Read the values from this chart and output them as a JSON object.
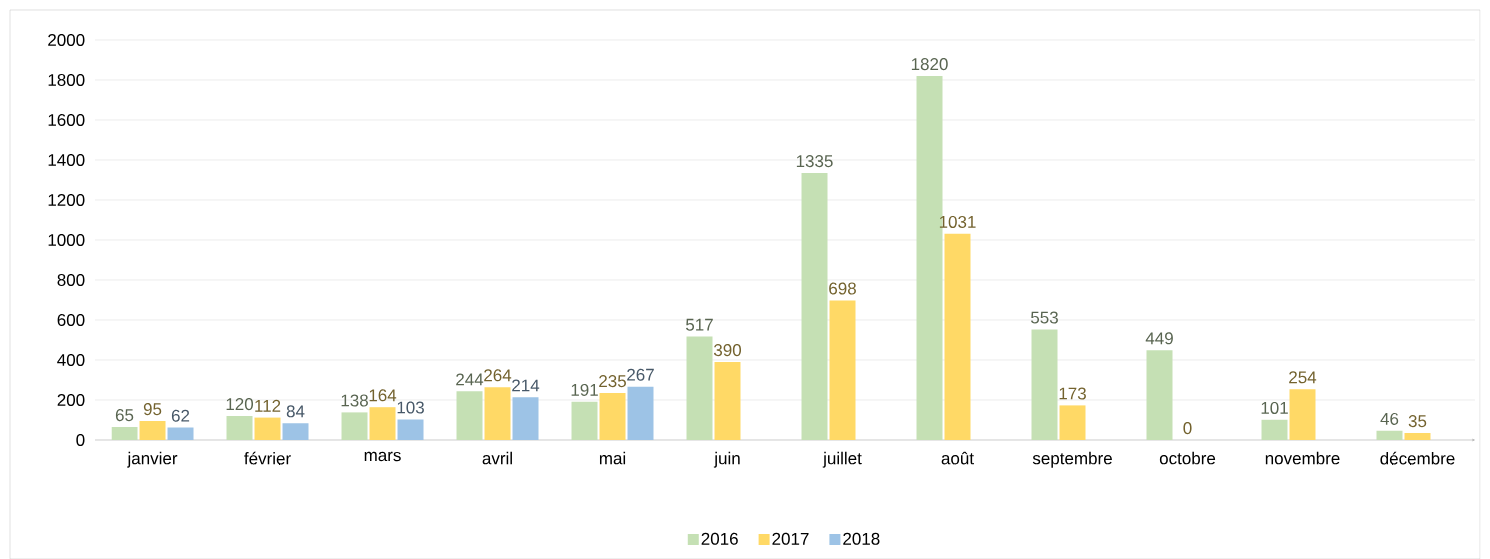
{
  "chart_data": {
    "type": "bar",
    "categories": [
      "janvier",
      "février",
      "mars",
      "avril",
      "mai",
      "juin",
      "juillet",
      "août",
      "septembre",
      "octobre",
      "novembre",
      "décembre"
    ],
    "series": [
      {
        "name": "2016",
        "color": "#c5e0b4",
        "values": [
          65,
          120,
          138,
          244,
          191,
          517,
          1335,
          1820,
          553,
          449,
          101,
          46
        ]
      },
      {
        "name": "2017",
        "color": "#ffd966",
        "values": [
          95,
          112,
          164,
          264,
          235,
          390,
          698,
          1031,
          173,
          0,
          254,
          35
        ]
      },
      {
        "name": "2018",
        "color": "#9dc3e6",
        "values": [
          62,
          84,
          103,
          214,
          267,
          null,
          null,
          null,
          null,
          null,
          null,
          null
        ]
      }
    ],
    "ylim": [
      0,
      2000
    ],
    "yticks": [
      0,
      200,
      400,
      600,
      800,
      1000,
      1200,
      1400,
      1600,
      1800,
      2000
    ],
    "grid": "y",
    "legend": "bottom",
    "data_labels": true
  }
}
